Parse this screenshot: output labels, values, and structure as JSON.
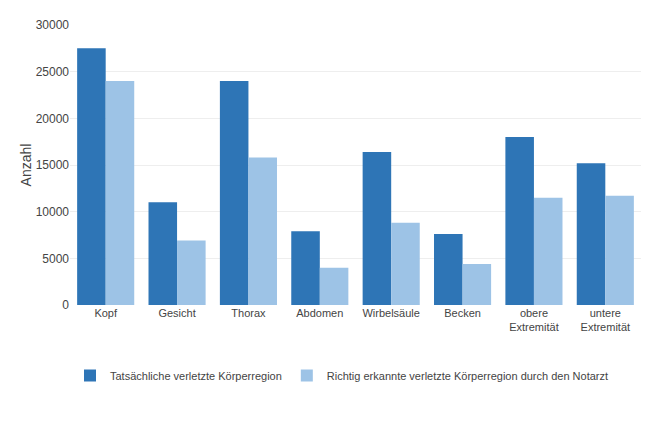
{
  "chart_data": {
    "type": "bar",
    "ylabel": "Anzahl",
    "categories": [
      "Kopf",
      "Gesicht",
      "Thorax",
      "Abdomen",
      "Wirbelsäule",
      "Becken",
      "obere\nExtremität",
      "untere\nExtremität"
    ],
    "series": [
      {
        "name": "Tatsächliche verletzte Körperregion",
        "color": "#2E75B6",
        "values": [
          27500,
          11000,
          24000,
          7900,
          16400,
          7600,
          18000,
          15200
        ]
      },
      {
        "name": "Richtig erkannte verletzte Körperregion durch den Notarzt",
        "color": "#9DC3E6",
        "values": [
          24000,
          6900,
          15800,
          4000,
          8800,
          4400,
          11500,
          11700
        ]
      }
    ],
    "ylim": [
      0,
      30000
    ],
    "yticks": [
      0,
      5000,
      10000,
      15000,
      20000,
      25000,
      30000
    ],
    "grid": true,
    "legend": "bottom"
  }
}
